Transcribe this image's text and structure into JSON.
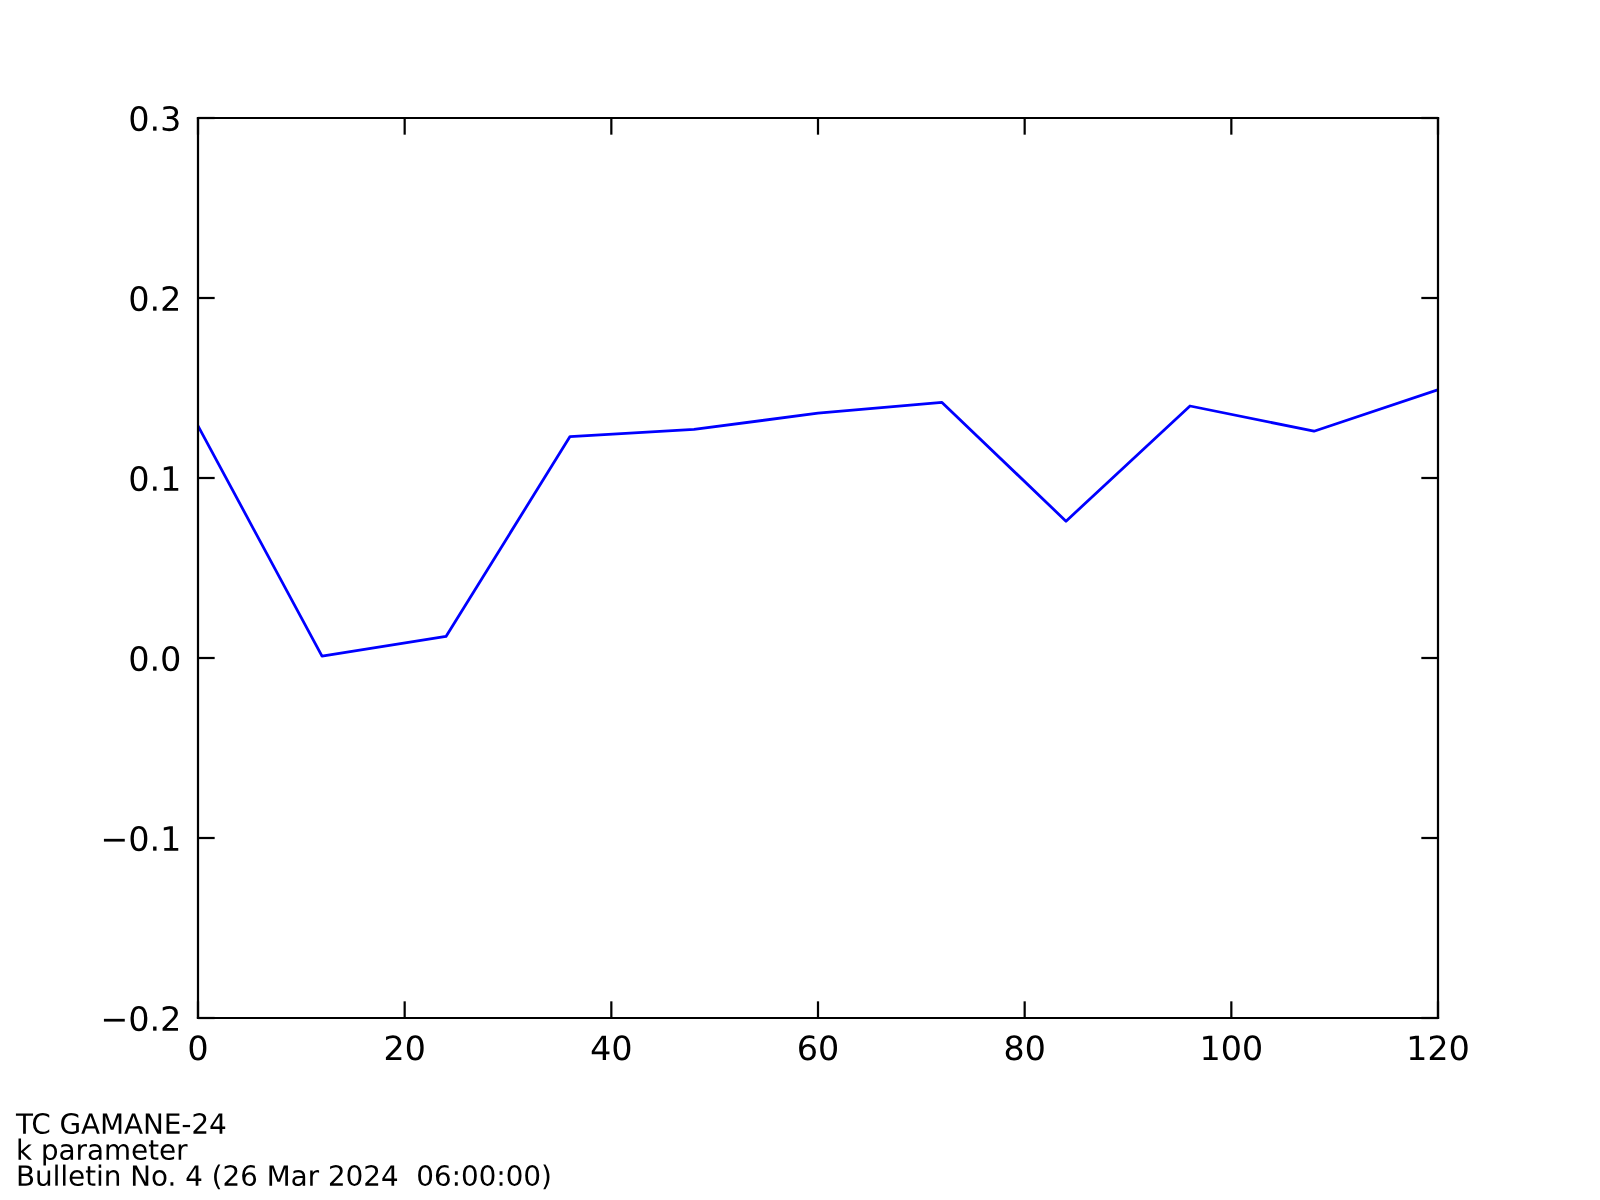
{
  "chart_data": {
    "type": "line",
    "x": [
      0,
      12,
      24,
      36,
      48,
      60,
      72,
      84,
      96,
      108,
      120
    ],
    "series": [
      {
        "color": "#0000ff",
        "values": [
          0.129,
          0.001,
          0.012,
          0.123,
          0.127,
          0.136,
          0.142,
          0.076,
          0.14,
          0.126,
          0.149
        ]
      }
    ],
    "xlim": [
      0,
      120
    ],
    "xticks": [
      0,
      20,
      40,
      60,
      80,
      100,
      120
    ],
    "ylim": [
      -0.2,
      0.3
    ],
    "yticks": [
      -0.2,
      -0.1,
      {
        "value": 0,
        "label": "0.0"
      },
      0.1,
      0.2,
      0.3
    ],
    "grid": false,
    "legend": false,
    "marker": "none",
    "line_style": "solid",
    "annotations": [
      "TC GAMANE-24",
      "k parameter",
      "Bulletin No. 4 (26 Mar 2024  06:00:00)"
    ]
  }
}
